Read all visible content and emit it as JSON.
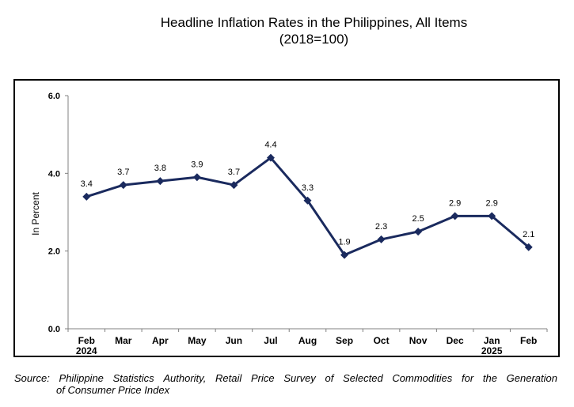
{
  "title_line1": "Headline Inflation Rates in the Philippines, All Items",
  "title_line2": "(2018=100)",
  "source_words": [
    "Source:",
    "Philippine",
    "Statistics",
    "Authority,",
    "Retail",
    "Price",
    "Survey",
    "of",
    "Selected",
    "Commodities",
    "for",
    "the",
    "Generation"
  ],
  "source_line2": "of Consumer Price Index",
  "chart_data": {
    "type": "line",
    "title": "Headline Inflation Rates in the Philippines, All Items",
    "subtitle": "(2018=100)",
    "ylabel": "In Percent",
    "xlabel": "",
    "ylim": [
      0,
      6
    ],
    "yticks": [
      "0.0",
      "2.0",
      "4.0",
      "6.0"
    ],
    "grid": false,
    "categories": [
      "Feb",
      "Mar",
      "Apr",
      "May",
      "Jun",
      "Jul",
      "Aug",
      "Sep",
      "Oct",
      "Nov",
      "Dec",
      "Jan",
      "Feb"
    ],
    "year_labels": [
      "2024",
      "",
      "",
      "",
      "",
      "",
      "",
      "",
      "",
      "",
      "",
      "2025",
      ""
    ],
    "values": [
      3.4,
      3.7,
      3.8,
      3.9,
      3.7,
      4.4,
      3.3,
      1.9,
      2.3,
      2.5,
      2.9,
      2.9,
      2.1
    ],
    "data_labels": [
      "3.4",
      "3.7",
      "3.8",
      "3.9",
      "3.7",
      "4.4",
      "3.3",
      "1.9",
      "2.3",
      "2.5",
      "2.9",
      "2.9",
      "2.1"
    ],
    "line_color": "#1a2a5e"
  }
}
